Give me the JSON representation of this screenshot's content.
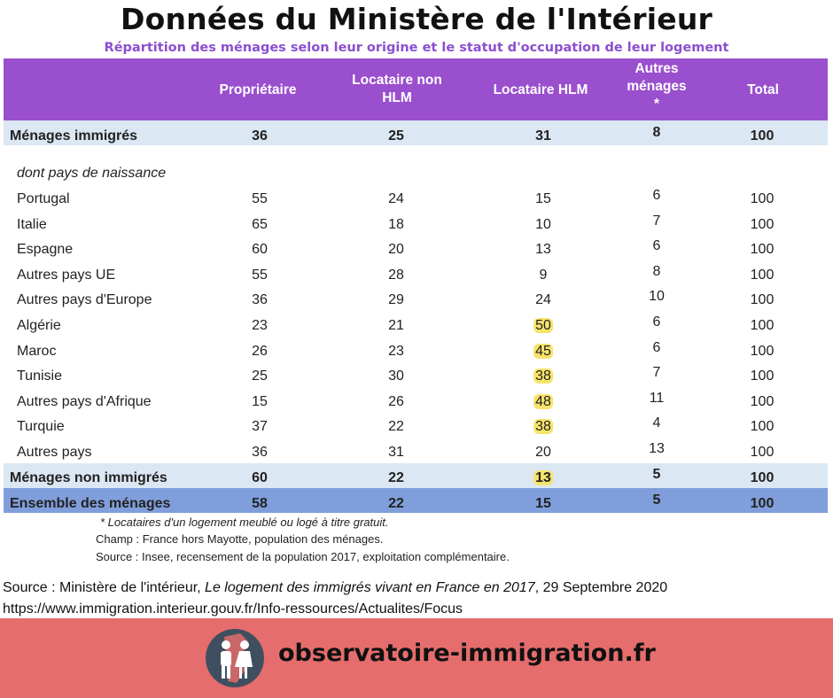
{
  "title": "Données du Ministère de l'Intérieur",
  "subtitle": "Répartition des ménages selon leur origine et le statut d'occupation de leur logement",
  "headers": {
    "proprietaire": "Propriétaire",
    "locataire_non_hlm_1": "Locataire non",
    "locataire_non_hlm_2": "HLM",
    "locataire_hlm": "Locataire HLM",
    "autres_1": "Autres",
    "autres_2": "ménages",
    "autres_3": "*",
    "total": "Total"
  },
  "menages_immigres": {
    "label": "Ménages immigrés",
    "values": [
      "36",
      "25",
      "31",
      "8",
      "100"
    ]
  },
  "sub_heading": "dont pays de naissance",
  "countries": [
    {
      "label": "Portugal",
      "values": [
        "55",
        "24",
        "15",
        "6",
        "100"
      ]
    },
    {
      "label": "Italie",
      "values": [
        "65",
        "18",
        "10",
        "7",
        "100"
      ]
    },
    {
      "label": "Espagne",
      "values": [
        "60",
        "20",
        "13",
        "6",
        "100"
      ]
    },
    {
      "label": "Autres pays UE",
      "values": [
        "55",
        "28",
        "9",
        "8",
        "100"
      ]
    },
    {
      "label": "Autres pays d'Europe",
      "values": [
        "36",
        "29",
        "24",
        "10",
        "100"
      ]
    },
    {
      "label": "Algérie",
      "values": [
        "23",
        "21",
        "50",
        "6",
        "100"
      ]
    },
    {
      "label": "Maroc",
      "values": [
        "26",
        "23",
        "45",
        "6",
        "100"
      ]
    },
    {
      "label": "Tunisie",
      "values": [
        "25",
        "30",
        "38",
        "7",
        "100"
      ]
    },
    {
      "label": "Autres pays d'Afrique",
      "values": [
        "15",
        "26",
        "48",
        "11",
        "100"
      ]
    },
    {
      "label": "Turquie",
      "values": [
        "37",
        "22",
        "38",
        "4",
        "100"
      ]
    },
    {
      "label": "Autres pays",
      "values": [
        "36",
        "31",
        "20",
        "13",
        "100"
      ]
    }
  ],
  "menages_non_immigres": {
    "label": "Ménages non immigrés",
    "values": [
      "60",
      "22",
      "13",
      "5",
      "100"
    ]
  },
  "ensemble": {
    "label": "Ensemble des ménages",
    "values": [
      "58",
      "22",
      "15",
      "5",
      "100"
    ]
  },
  "notes": {
    "footnote": "* Locataires d'un logement meublé ou logé à titre gratuit.",
    "champ": "Champ : France hors Mayotte, population des ménages.",
    "source": "Source : Insee, recensement de la population 2017, exploitation complémentaire."
  },
  "source_line": {
    "prefix": "Source : Ministère de l'intérieur, ",
    "italic": "Le logement des immigrés vivant en France en 2017",
    "suffix": ", 29 Septembre 2020"
  },
  "url": "https://www.immigration.interieur.gouv.fr/Info-ressources/Actualites/Focus",
  "brand": "observatoire-immigration.fr",
  "colors": {
    "header": "#9a4fce",
    "subtitle": "#8b4fd0",
    "light_row": "#dbe7f2",
    "ensemble_row": "#7f9edb",
    "highlight": "#f7e36b",
    "footer": "#e66d6d"
  }
}
